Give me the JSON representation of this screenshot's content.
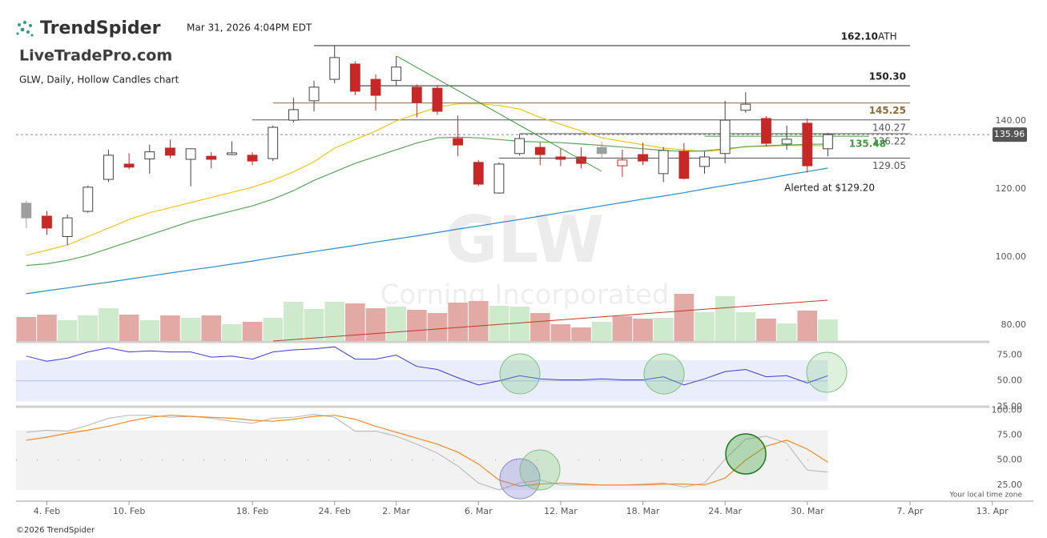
{
  "header": {
    "brand": "TrendSpider",
    "partner": "LiveTradePro.com",
    "timezone": "Your local time zone",
    "copyright": "©2026 TrendSpider"
  },
  "chart_data": {
    "type": "candlestick",
    "title": "GLW, Daily, Hollow Candles chart",
    "timestamp": "Mar 31, 2026 4:04PM EDT",
    "watermark": "GLW",
    "watermark_subtitle": "Corning Incorporated",
    "alert": "Alerted at $129.20",
    "xlim": [
      -0.5,
      49
    ],
    "xticks": [
      {
        "value": 1,
        "label": "4. Feb"
      },
      {
        "value": 5,
        "label": "10. Feb"
      },
      {
        "value": 11,
        "label": "18. Feb"
      },
      {
        "value": 15,
        "label": "24. Feb"
      },
      {
        "value": 18,
        "label": "2. Mar"
      },
      {
        "value": 22,
        "label": "6. Mar"
      },
      {
        "value": 26,
        "label": "12. Mar"
      },
      {
        "value": 30,
        "label": "18. Mar"
      },
      {
        "value": 34,
        "label": "24. Mar"
      },
      {
        "value": 38,
        "label": "30. Mar"
      },
      {
        "value": 43,
        "label": "7. Apr"
      },
      {
        "value": 47,
        "label": "13. Apr"
      }
    ],
    "ylim": [
      75.3,
      166.1
    ],
    "yticks": [
      {
        "value": 140,
        "label": "140.00"
      },
      {
        "value": 120,
        "label": "120.00"
      },
      {
        "value": 100,
        "label": "100.00"
      },
      {
        "value": 80,
        "label": "80.00"
      }
    ],
    "up_color": "#444444",
    "down_color": "#c62828",
    "neutral_color": "#9e9e9e",
    "candles": {
      "open": [
        115.8,
        112,
        106,
        113.4,
        122.8,
        127.3,
        128.8,
        132,
        128.7,
        129.6,
        130.1,
        129.9,
        128.9,
        140.2,
        145.9,
        152.2,
        156.7,
        152.2,
        151.9,
        149.9,
        149.6,
        134.8,
        127.8,
        118.8,
        130.4,
        132.2,
        129.4,
        129.4,
        132.2,
        126.8,
        130.1,
        124.5,
        131.1,
        126.6,
        130.4,
        143.1,
        140.7,
        133.2,
        139.3,
        131.8
      ],
      "high": [
        116.5,
        113.5,
        112.5,
        121,
        131.5,
        130.5,
        133,
        134.5,
        131.8,
        130.8,
        134,
        130.8,
        138.6,
        146.8,
        151.8,
        162.1,
        157.5,
        153.6,
        159,
        150.7,
        150.5,
        141.6,
        128.5,
        127.8,
        136.2,
        133.6,
        132,
        132.2,
        133.8,
        131.5,
        133.6,
        132.3,
        133.5,
        131,
        145.9,
        148.4,
        141.4,
        138.6,
        140.7,
        136.5
      ],
      "low": [
        108.5,
        106.5,
        103.5,
        113,
        122,
        125.8,
        124.5,
        129,
        120.8,
        126,
        129.9,
        127,
        128.2,
        139.5,
        142.8,
        151,
        147.5,
        143,
        150.4,
        141,
        141.8,
        129.6,
        120.8,
        118.6,
        129.8,
        127,
        126.7,
        126,
        129,
        123.5,
        127,
        122,
        122.8,
        124.5,
        127.5,
        142.4,
        132.5,
        131.5,
        124.8,
        129.6
      ],
      "close": [
        111.5,
        108.5,
        111.5,
        120.5,
        129.9,
        126.4,
        130.9,
        129.9,
        131.8,
        128.7,
        130.6,
        128.2,
        138.1,
        143.3,
        149.9,
        158.6,
        148.7,
        147.5,
        155.8,
        145.4,
        142.8,
        132.9,
        121.4,
        127.3,
        134.8,
        130.1,
        128.7,
        127.5,
        130.4,
        128.5,
        128.2,
        131.3,
        123.1,
        129.4,
        140.2,
        144.9,
        133.4,
        134.6,
        126.8,
        135.96
      ]
    },
    "moving_averages": [
      {
        "color": "#f5c518",
        "values": [
          100.5,
          102,
          103.5,
          106,
          108.5,
          111,
          113,
          114.5,
          116,
          117.5,
          119,
          120.5,
          122.5,
          125,
          128,
          132,
          134.5,
          137,
          140,
          142,
          144,
          145,
          145,
          144.5,
          143.5,
          141,
          139,
          137,
          135,
          134,
          133,
          132,
          131.5,
          131,
          131.5,
          132.5,
          132.5,
          132.8,
          132.7,
          132.7
        ]
      },
      {
        "color": "#5aa35a",
        "values": [
          97.5,
          98,
          99,
          100.5,
          102.5,
          104.5,
          106.5,
          108.5,
          110.5,
          112,
          113.5,
          115,
          117,
          119.5,
          122.5,
          125,
          127.5,
          129.5,
          131.5,
          133.5,
          135,
          135.2,
          135,
          134.5,
          134,
          133.8,
          133.6,
          133.2,
          132.8,
          132.3,
          131.8,
          131.3,
          131,
          131.2,
          131.8,
          132.4,
          132.7,
          132.9,
          133.1,
          133.2
        ]
      },
      {
        "color": "#2b8cc4",
        "values": [
          89.2,
          90.1,
          90.9,
          91.8,
          92.6,
          93.5,
          94.4,
          95.3,
          96.2,
          97.0,
          97.9,
          98.8,
          99.8,
          100.7,
          101.6,
          102.5,
          103.4,
          104.4,
          105.3,
          106.2,
          107.2,
          108.2,
          109.1,
          110.1,
          111.0,
          112.0,
          113.0,
          114.0,
          115.0,
          116.0,
          117.0,
          117.9,
          118.9,
          120.0,
          121.0,
          122.0,
          123.0,
          124.1,
          125.1,
          126.1
        ]
      }
    ],
    "levels": [
      {
        "value": 162.1,
        "label": "162.10",
        "suffix": "ATH",
        "x_start": 14,
        "x_end": 43,
        "color": "#222222",
        "bold": true,
        "label_position": "above"
      },
      {
        "value": 150.3,
        "label": "150.30",
        "x_start": 16,
        "x_end": 43,
        "color": "#222222",
        "bold": true,
        "label_position": "above"
      },
      {
        "value": 145.25,
        "label": "145.25",
        "x_start": 12,
        "x_end": 43,
        "color": "#8b6b3a",
        "bold": true,
        "label_position": "below"
      },
      {
        "value": 140.27,
        "label": "140.27",
        "x_start": 11,
        "x_end": 43,
        "color": "#555555",
        "bold": false,
        "label_position": "below"
      },
      {
        "value": 136.22,
        "label": "136.22",
        "x_start": 24,
        "x_end": 43,
        "color": "#555555",
        "bold": false,
        "label_position": "below"
      },
      {
        "value": 129.05,
        "label": "129.05",
        "x_start": 23,
        "x_end": 43,
        "color": "#555555",
        "bold": false,
        "label_position": "below"
      },
      {
        "value": 135.48,
        "label": "135.48",
        "x_start": 33,
        "x_end": 41,
        "color": "#3d9a3d",
        "bold": true,
        "label_position": "right"
      }
    ],
    "last_price": {
      "value": 135.96,
      "label": "135.96"
    },
    "volume": {
      "ylim": [
        0,
        60
      ],
      "up_color": "#cdeacd",
      "down_color": "#e3a9a4",
      "values": [
        30,
        33,
        26,
        32,
        41,
        33,
        26,
        32,
        29,
        32,
        21,
        24,
        29,
        49,
        40,
        49,
        47,
        41,
        43,
        39,
        35,
        48,
        50,
        44,
        43,
        35,
        21,
        17,
        24,
        31,
        28,
        29,
        59,
        36,
        56,
        36,
        28,
        22,
        38,
        27
      ]
    },
    "rsi": {
      "ylim": [
        25,
        87
      ],
      "yticks": [
        {
          "value": 75,
          "label": "75.00"
        },
        {
          "value": 50,
          "label": "50.00"
        },
        {
          "value": 25,
          "label": "25.00"
        }
      ],
      "band": [
        30,
        70
      ],
      "color": "#3a3ad0",
      "values": [
        74,
        69,
        72,
        78,
        82,
        78,
        79,
        78,
        78,
        73,
        74,
        71,
        78,
        80,
        81,
        83,
        71,
        71,
        75,
        64,
        61,
        53,
        46,
        50,
        55,
        52,
        51,
        51,
        52,
        51,
        51,
        54,
        46,
        52,
        59,
        61,
        54,
        55,
        48,
        55
      ]
    },
    "stochastic": {
      "ylim": [
        12,
        102
      ],
      "yticks": [
        {
          "value": 100,
          "label": "100.00"
        },
        {
          "value": 75,
          "label": "75.00"
        },
        {
          "value": 50,
          "label": "50.00"
        },
        {
          "value": 25,
          "label": "25.00"
        }
      ],
      "band": [
        20,
        80
      ],
      "series": [
        {
          "color": "#bdbdbd",
          "values": [
            78,
            80,
            79,
            85,
            92,
            95,
            95,
            93,
            94,
            92,
            89,
            87,
            92,
            93,
            96,
            93,
            79,
            79,
            74,
            66,
            57,
            44,
            27,
            20,
            27,
            30,
            25,
            25,
            25,
            25,
            26,
            27,
            23,
            27,
            51,
            71,
            74,
            67,
            40,
            38
          ]
        },
        {
          "color": "#f08a24",
          "values": [
            70,
            73,
            77,
            80,
            84,
            89,
            93,
            95,
            94,
            93,
            92,
            90,
            89,
            91,
            94,
            95,
            91,
            84,
            78,
            72,
            66,
            58,
            46,
            30,
            24,
            26,
            27,
            26,
            25,
            25,
            25,
            26,
            26,
            25,
            32,
            50,
            64,
            70,
            61,
            48
          ]
        }
      ]
    }
  }
}
